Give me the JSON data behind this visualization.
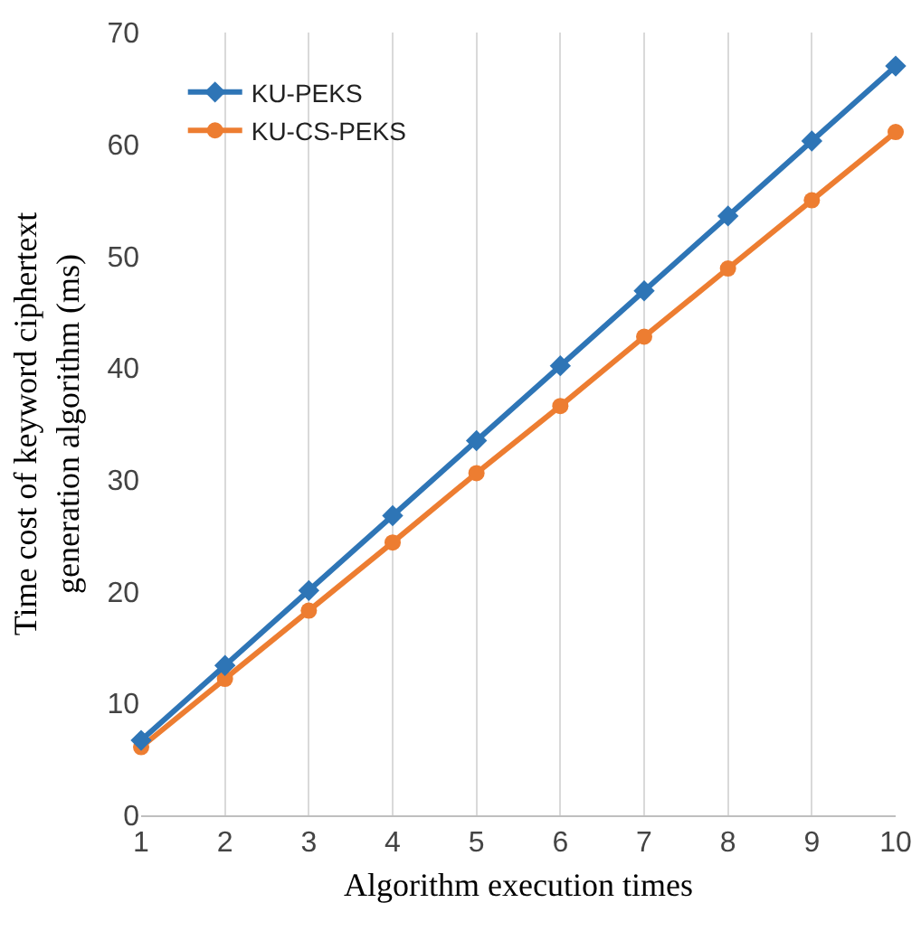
{
  "chart_data": {
    "type": "line",
    "xlabel": "Algorithm execution times",
    "ylabel": "Time cost of keyword ciphertext\ngeneration algorithm (ms)",
    "x": [
      1,
      2,
      3,
      4,
      5,
      6,
      7,
      8,
      9,
      10
    ],
    "series": [
      {
        "name": "KU-PEKS",
        "color": "#2e75b6",
        "marker": "diamond",
        "values": [
          6.7,
          13.4,
          20.1,
          26.8,
          33.5,
          40.2,
          46.9,
          53.6,
          60.3,
          67.0
        ]
      },
      {
        "name": "KU-CS-PEKS",
        "color": "#ed7d31",
        "marker": "circle",
        "values": [
          6.1,
          12.2,
          18.3,
          24.4,
          30.6,
          36.6,
          42.8,
          48.9,
          55.0,
          61.1
        ]
      }
    ],
    "xlim": [
      1,
      10
    ],
    "xticks": [
      1,
      2,
      3,
      4,
      5,
      6,
      7,
      8,
      9,
      10
    ],
    "ylim": [
      0,
      70
    ],
    "yticks": [
      0,
      10,
      20,
      30,
      40,
      50,
      60,
      70
    ],
    "grid": "x",
    "legend": "top left",
    "line_style": "solid"
  }
}
